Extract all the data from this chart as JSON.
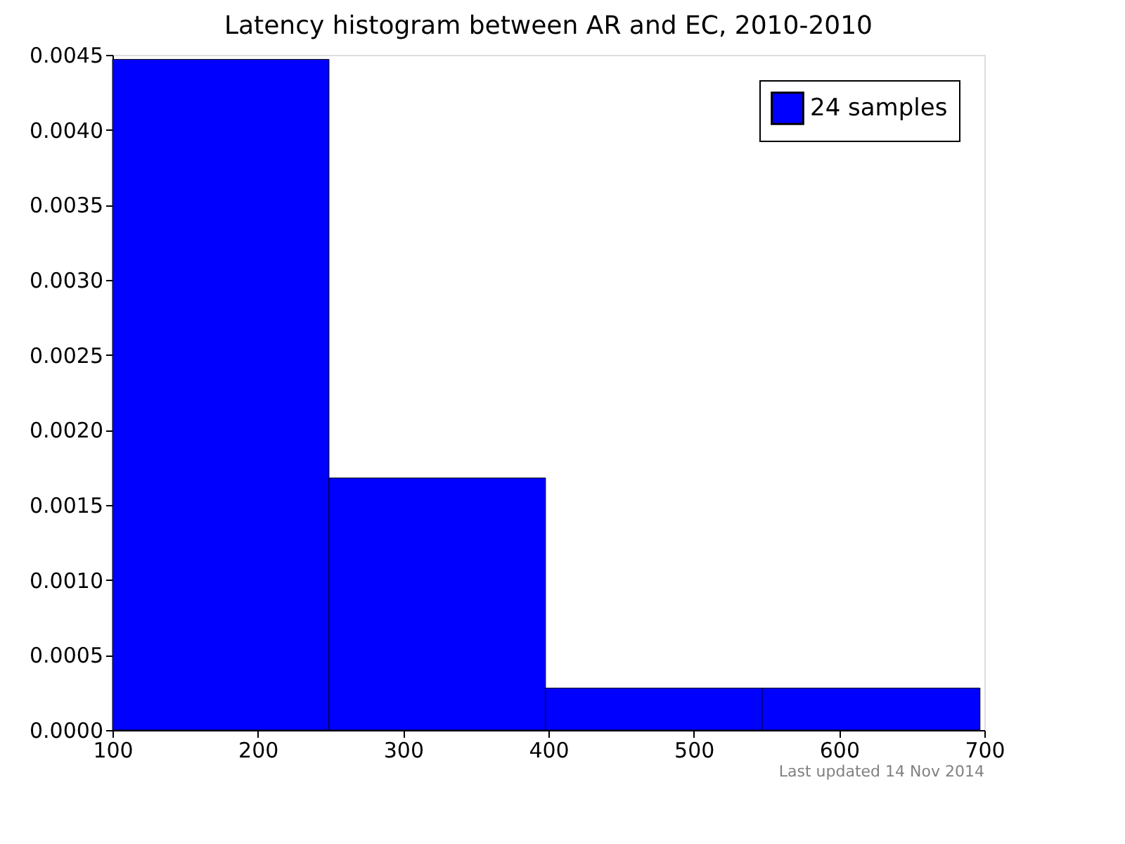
{
  "chart_data": {
    "type": "histogram",
    "title": "Latency histogram between AR and EC, 2010-2010",
    "bins": [
      100,
      249,
      398,
      547,
      697
    ],
    "series": [
      {
        "name": "24 samples",
        "color": "#0000ff",
        "values": [
          0.00447,
          0.00168,
          0.00028,
          0.00028
        ]
      }
    ],
    "xlim": [
      100,
      700
    ],
    "xticks": [
      100,
      200,
      300,
      400,
      500,
      600,
      700
    ],
    "ylim": [
      0,
      0.0045
    ],
    "yticks": [
      {
        "value": 0,
        "label": "0.0000"
      },
      {
        "value": 0.0005,
        "label": "0.0005"
      },
      {
        "value": 0.001,
        "label": "0.0010"
      },
      {
        "value": 0.0015,
        "label": "0.0015"
      },
      {
        "value": 0.002,
        "label": "0.0020"
      },
      {
        "value": 0.0025,
        "label": "0.0025"
      },
      {
        "value": 0.003,
        "label": "0.0030"
      },
      {
        "value": 0.0035,
        "label": "0.0035"
      },
      {
        "value": 0.004,
        "label": "0.0040"
      },
      {
        "value": 0.0045,
        "label": "0.0045"
      }
    ],
    "legend": "top right",
    "grid": false,
    "annotations": [
      "Last updated 14 Nov 2014"
    ]
  }
}
